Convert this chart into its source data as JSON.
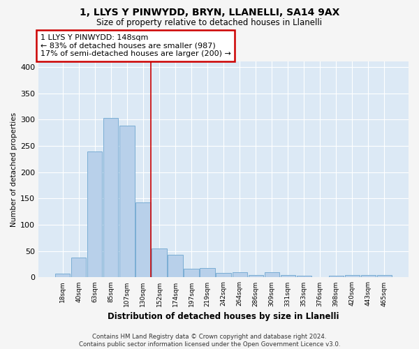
{
  "title_line1": "1, LLYS Y PINWYDD, BRYN, LLANELLI, SA14 9AX",
  "title_line2": "Size of property relative to detached houses in Llanelli",
  "xlabel": "Distribution of detached houses by size in Llanelli",
  "ylabel": "Number of detached properties",
  "footnote": "Contains HM Land Registry data © Crown copyright and database right 2024.\nContains public sector information licensed under the Open Government Licence v3.0.",
  "bar_labels": [
    "18sqm",
    "40sqm",
    "63sqm",
    "85sqm",
    "107sqm",
    "130sqm",
    "152sqm",
    "174sqm",
    "197sqm",
    "219sqm",
    "242sqm",
    "264sqm",
    "286sqm",
    "309sqm",
    "331sqm",
    "353sqm",
    "376sqm",
    "398sqm",
    "420sqm",
    "443sqm",
    "465sqm"
  ],
  "bar_values": [
    7,
    38,
    240,
    303,
    288,
    142,
    55,
    43,
    17,
    18,
    9,
    10,
    5,
    10,
    4,
    3,
    0,
    3,
    5,
    4,
    5
  ],
  "bar_color": "#b8d0ea",
  "bar_edge_color": "#7aadd4",
  "bg_color": "#dce9f5",
  "grid_color": "#ffffff",
  "annotation_line1": "1 LLYS Y PINWYDD: 148sqm",
  "annotation_line2": "← 83% of detached houses are smaller (987)",
  "annotation_line3": "17% of semi-detached houses are larger (200) →",
  "vline_x": 6,
  "vline_color": "#cc0000",
  "box_edge_color": "#cc0000",
  "fig_bg_color": "#f5f5f5",
  "ylim": [
    0,
    410
  ],
  "yticks": [
    0,
    50,
    100,
    150,
    200,
    250,
    300,
    350,
    400
  ]
}
